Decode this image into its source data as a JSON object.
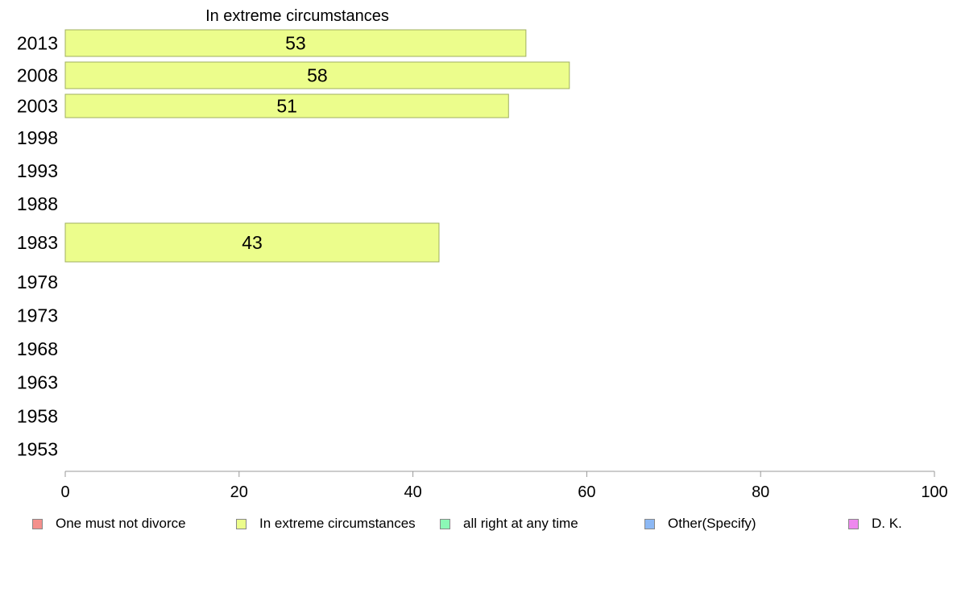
{
  "chart_data": {
    "type": "bar",
    "orientation": "horizontal",
    "title": "In extreme circumstances",
    "categories": [
      "2013",
      "2008",
      "2003",
      "1998",
      "1993",
      "1988",
      "1983",
      "1978",
      "1973",
      "1968",
      "1963",
      "1958",
      "1953"
    ],
    "series": [
      {
        "name": "In extreme circumstances",
        "values": [
          53,
          58,
          51,
          null,
          null,
          null,
          43,
          null,
          null,
          null,
          null,
          null,
          null
        ]
      }
    ],
    "xlim": [
      0,
      100
    ],
    "xticks": [
      "0",
      "20",
      "40",
      "60",
      "80",
      "100"
    ],
    "grid": false,
    "legend_position": "bottom"
  },
  "legend": [
    {
      "label": "One must not divorce",
      "color": "#f4908c"
    },
    {
      "label": "In extreme circumstances",
      "color": "#ecfd8c"
    },
    {
      "label": "all right at any time",
      "color": "#8cf8b6"
    },
    {
      "label": "Other(Specify)",
      "color": "#8cb8f4"
    },
    {
      "label": "D. K.",
      "color": "#ee88ee"
    }
  ],
  "colors": {
    "bar_fill": "#ecfd8c",
    "bar_stroke": "#a0b060",
    "axis": "#999999"
  }
}
